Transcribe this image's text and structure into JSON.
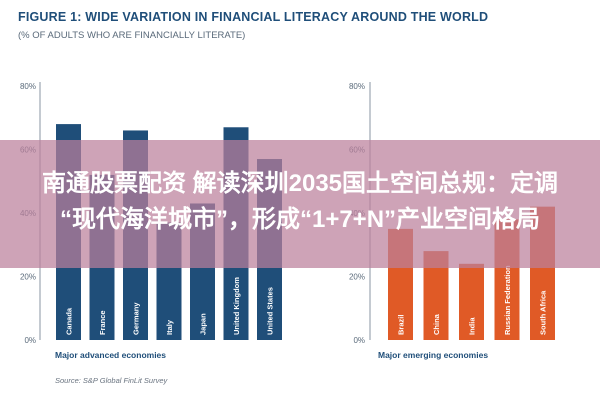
{
  "figure": {
    "title": "FIGURE 1: WIDE VARIATION IN FINANCIAL LITERACY AROUND THE WORLD",
    "subtitle": "(% OF ADULTS WHO ARE FINANCIALLY LITERATE)",
    "source": "Source: S&P Global FinLit Survey"
  },
  "overlay": {
    "line1": "南通股票配资 解读深圳2035国土空间总规：定调",
    "line2": "“现代海洋城市”，形成“1+7+N”产业空间格局"
  },
  "chart_data": [
    {
      "type": "bar",
      "group_title": "Major advanced economies",
      "categories": [
        "Canada",
        "France",
        "Germany",
        "Italy",
        "Japan",
        "United Kingdom",
        "United States"
      ],
      "values": [
        68,
        52,
        66,
        37,
        43,
        67,
        57
      ],
      "ylim": [
        0,
        80
      ],
      "yticks": [
        "0%",
        "20%",
        "40%",
        "60%",
        "80%"
      ],
      "grid": false,
      "bar_color": "#1f4e79"
    },
    {
      "type": "bar",
      "group_title": "Major emerging economies",
      "categories": [
        "Brazil",
        "China",
        "India",
        "Russian Federation",
        "South Africa"
      ],
      "values": [
        35,
        28,
        24,
        38,
        42
      ],
      "ylim": [
        0,
        80
      ],
      "yticks": [
        "0%",
        "20%",
        "40%",
        "60%",
        "80%"
      ],
      "grid": false,
      "bar_color": "#e05a26"
    }
  ]
}
